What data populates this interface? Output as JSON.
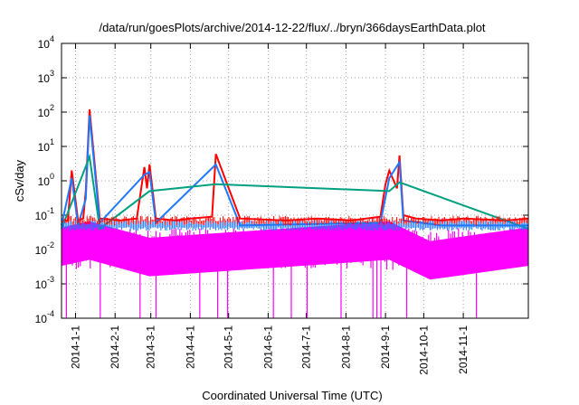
{
  "chart_data": {
    "type": "line",
    "title": "/data/run/goesPlots/archive/2014-12-22/flux/../bryn/366daysEarthData.plot",
    "xlabel": "Coordinated Universal Time (UTC)",
    "ylabel": "cSv/day",
    "y_scale": "log",
    "ylim": [
      0.0001,
      10000
    ],
    "y_ticks": [
      {
        "base": "10",
        "exp": "-4",
        "value": 0.0001
      },
      {
        "base": "10",
        "exp": "-3",
        "value": 0.001
      },
      {
        "base": "10",
        "exp": "-2",
        "value": 0.01
      },
      {
        "base": "10",
        "exp": "-1",
        "value": 0.1
      },
      {
        "base": "10",
        "exp": "0",
        "value": 1
      },
      {
        "base": "10",
        "exp": "1",
        "value": 10
      },
      {
        "base": "10",
        "exp": "2",
        "value": 100
      },
      {
        "base": "10",
        "exp": "3",
        "value": 1000
      },
      {
        "base": "10",
        "exp": "4",
        "value": 10000
      }
    ],
    "xlim": [
      "2013-12-21",
      "2014-12-22"
    ],
    "x_ticks": [
      "2014-1-1",
      "2014-2-1",
      "2014-3-1",
      "2014-4-1",
      "2014-5-1",
      "2014-6-1",
      "2014-7-1",
      "2014-8-1",
      "2014-9-1",
      "2014-10-1",
      "2014-11-1"
    ],
    "x_tick_dates": [
      "2014-01-01",
      "2014-02-01",
      "2014-03-01",
      "2014-04-01",
      "2014-05-01",
      "2014-06-01",
      "2014-07-01",
      "2014-08-01",
      "2014-09-01",
      "2014-10-01",
      "2014-11-01"
    ],
    "grid": true,
    "series": [
      {
        "color": "#ff0000",
        "x": [
          "2013-12-21",
          "2013-12-26",
          "2013-12-29",
          "2014-01-03",
          "2014-01-07",
          "2014-01-09",
          "2014-01-12",
          "2014-01-20",
          "2014-02-05",
          "2014-02-18",
          "2014-02-24",
          "2014-02-26",
          "2014-02-28",
          "2014-03-05",
          "2014-03-20",
          "2014-04-01",
          "2014-04-18",
          "2014-04-21",
          "2014-05-10",
          "2014-06-15",
          "2014-07-10",
          "2014-08-05",
          "2014-08-28",
          "2014-09-01",
          "2014-09-04",
          "2014-09-10",
          "2014-09-12",
          "2014-09-15",
          "2014-09-25",
          "2014-10-15",
          "2014-11-01",
          "2014-12-05",
          "2014-12-22"
        ],
        "y": [
          0.07,
          0.07,
          2.0,
          0.07,
          0.08,
          0.5,
          120,
          0.08,
          0.07,
          0.08,
          2.5,
          0.6,
          3.0,
          0.08,
          0.07,
          0.08,
          0.09,
          6.0,
          0.08,
          0.07,
          0.08,
          0.07,
          0.09,
          0.8,
          2.0,
          0.6,
          5.5,
          0.1,
          0.08,
          0.07,
          0.08,
          0.07,
          0.08
        ]
      },
      {
        "color": "#1e78ff",
        "x": [
          "2013-12-21",
          "2013-12-29",
          "2014-01-03",
          "2014-01-09",
          "2014-01-12",
          "2014-01-20",
          "2014-02-24",
          "2014-02-28",
          "2014-03-05",
          "2014-04-21",
          "2014-05-10",
          "2014-08-28",
          "2014-09-04",
          "2014-09-12",
          "2014-09-15",
          "2014-10-15",
          "2014-12-22"
        ],
        "y": [
          0.05,
          1.2,
          0.05,
          0.3,
          80,
          0.06,
          1.5,
          1.8,
          0.06,
          3.0,
          0.05,
          0.06,
          1.2,
          3.5,
          0.07,
          0.05,
          0.05
        ]
      },
      {
        "color": "#00a080",
        "x": [
          "2013-12-21",
          "2014-01-12",
          "2014-01-20",
          "2014-02-28",
          "2014-04-21",
          "2014-09-04",
          "2014-09-12",
          "2014-12-22"
        ],
        "y": [
          0.04,
          5.0,
          0.04,
          0.5,
          0.8,
          0.5,
          0.9,
          0.04
        ]
      },
      {
        "color": "#ff00ff",
        "x": [
          "2013-12-21",
          "2014-01-12",
          "2014-02-28",
          "2014-09-04",
          "2014-10-06",
          "2014-12-22"
        ],
        "y": [
          0.02,
          0.03,
          0.01,
          0.03,
          0.008,
          0.02
        ]
      }
    ]
  }
}
